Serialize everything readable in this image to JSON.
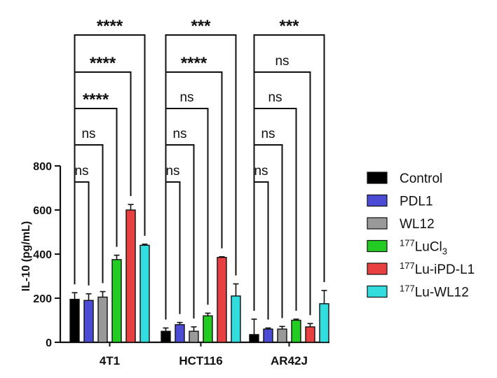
{
  "chart_data": {
    "type": "bar",
    "categories": [
      "4T1",
      "HCT116",
      "AR42J"
    ],
    "ylabel": "IL-10  (pg/mL)",
    "ylim": [
      0,
      800
    ],
    "yticks": [
      0,
      200,
      400,
      600,
      800
    ],
    "grid": false,
    "legend_position": "right",
    "series": [
      {
        "name": "Control",
        "name_parts": [
          {
            "t": "Control"
          }
        ],
        "color": "#000000",
        "values": [
          195,
          50,
          35
        ],
        "errors": [
          30,
          15,
          70
        ]
      },
      {
        "name": "PDL1",
        "name_parts": [
          {
            "t": "PDL1"
          }
        ],
        "color": "#4b4bd6",
        "values": [
          190,
          80,
          60
        ],
        "errors": [
          30,
          10,
          5
        ]
      },
      {
        "name": "WL12",
        "name_parts": [
          {
            "t": "WL12"
          }
        ],
        "color": "#999999",
        "values": [
          205,
          50,
          60
        ],
        "errors": [
          25,
          20,
          12
        ]
      },
      {
        "name": "177LuCl3",
        "name_parts": [
          {
            "t": "177",
            "sup": true
          },
          {
            "t": "LuCl"
          },
          {
            "t": "3",
            "sub": true
          }
        ],
        "color": "#22cc22",
        "values": [
          375,
          120,
          100
        ],
        "errors": [
          20,
          12,
          5
        ]
      },
      {
        "name": "177Lu-iPD-L1",
        "name_parts": [
          {
            "t": "177",
            "sup": true
          },
          {
            "t": "Lu-iPD-L1"
          }
        ],
        "color": "#e84040",
        "values": [
          600,
          385,
          70
        ],
        "errors": [
          25,
          3,
          15
        ]
      },
      {
        "name": "177Lu-WL12",
        "name_parts": [
          {
            "t": "177",
            "sup": true
          },
          {
            "t": "Lu-WL12"
          }
        ],
        "color": "#33dddd",
        "values": [
          440,
          210,
          175
        ],
        "errors": [
          5,
          55,
          60
        ]
      }
    ],
    "significance": [
      {
        "group": 0,
        "compare": 1,
        "label": "ns"
      },
      {
        "group": 0,
        "compare": 2,
        "label": "ns"
      },
      {
        "group": 0,
        "compare": 3,
        "label": "****"
      },
      {
        "group": 0,
        "compare": 4,
        "label": "****"
      },
      {
        "group": 0,
        "compare": 5,
        "label": "****"
      },
      {
        "group": 1,
        "compare": 1,
        "label": "ns"
      },
      {
        "group": 1,
        "compare": 2,
        "label": "ns"
      },
      {
        "group": 1,
        "compare": 3,
        "label": "ns"
      },
      {
        "group": 1,
        "compare": 4,
        "label": "****"
      },
      {
        "group": 1,
        "compare": 5,
        "label": "***"
      },
      {
        "group": 2,
        "compare": 1,
        "label": "ns"
      },
      {
        "group": 2,
        "compare": 2,
        "label": "ns"
      },
      {
        "group": 2,
        "compare": 3,
        "label": "ns"
      },
      {
        "group": 2,
        "compare": 4,
        "label": "ns"
      },
      {
        "group": 2,
        "compare": 5,
        "label": "***"
      }
    ]
  }
}
